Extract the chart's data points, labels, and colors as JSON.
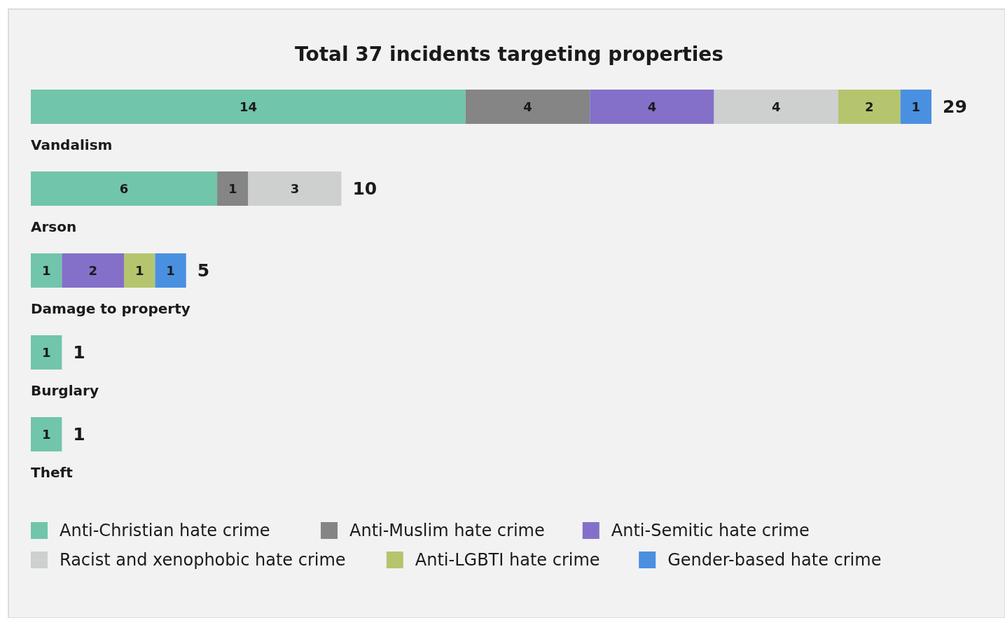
{
  "chart_data": {
    "type": "bar",
    "orientation": "horizontal",
    "stacked": true,
    "title": "Total 37 incidents targeting properties",
    "categories": [
      "Vandalism",
      "Arson",
      "Damage to property",
      "Burglary",
      "Theft"
    ],
    "series": [
      {
        "name": "Anti-Christian hate crime",
        "color": "#71c5ab",
        "values": [
          14,
          6,
          1,
          1,
          1
        ]
      },
      {
        "name": "Anti-Muslim hate crime",
        "color": "#858585",
        "values": [
          4,
          1,
          null,
          null,
          null
        ]
      },
      {
        "name": "Anti-Semitic hate crime",
        "color": "#8470c8",
        "values": [
          4,
          null,
          2,
          null,
          null
        ]
      },
      {
        "name": "Racist and xenophobic hate crime",
        "color": "#cdd0cf",
        "values": [
          4,
          3,
          null,
          null,
          null
        ]
      },
      {
        "name": "Anti-LGBTI hate crime",
        "color": "#b5c56e",
        "values": [
          2,
          null,
          1,
          null,
          null
        ]
      },
      {
        "name": "Gender-based hate crime",
        "color": "#4a90e0",
        "values": [
          1,
          null,
          1,
          null,
          null
        ]
      }
    ],
    "data_labels": true,
    "totals": [
      "29",
      "10",
      "5",
      "1",
      "1"
    ],
    "legend": "bottom"
  }
}
